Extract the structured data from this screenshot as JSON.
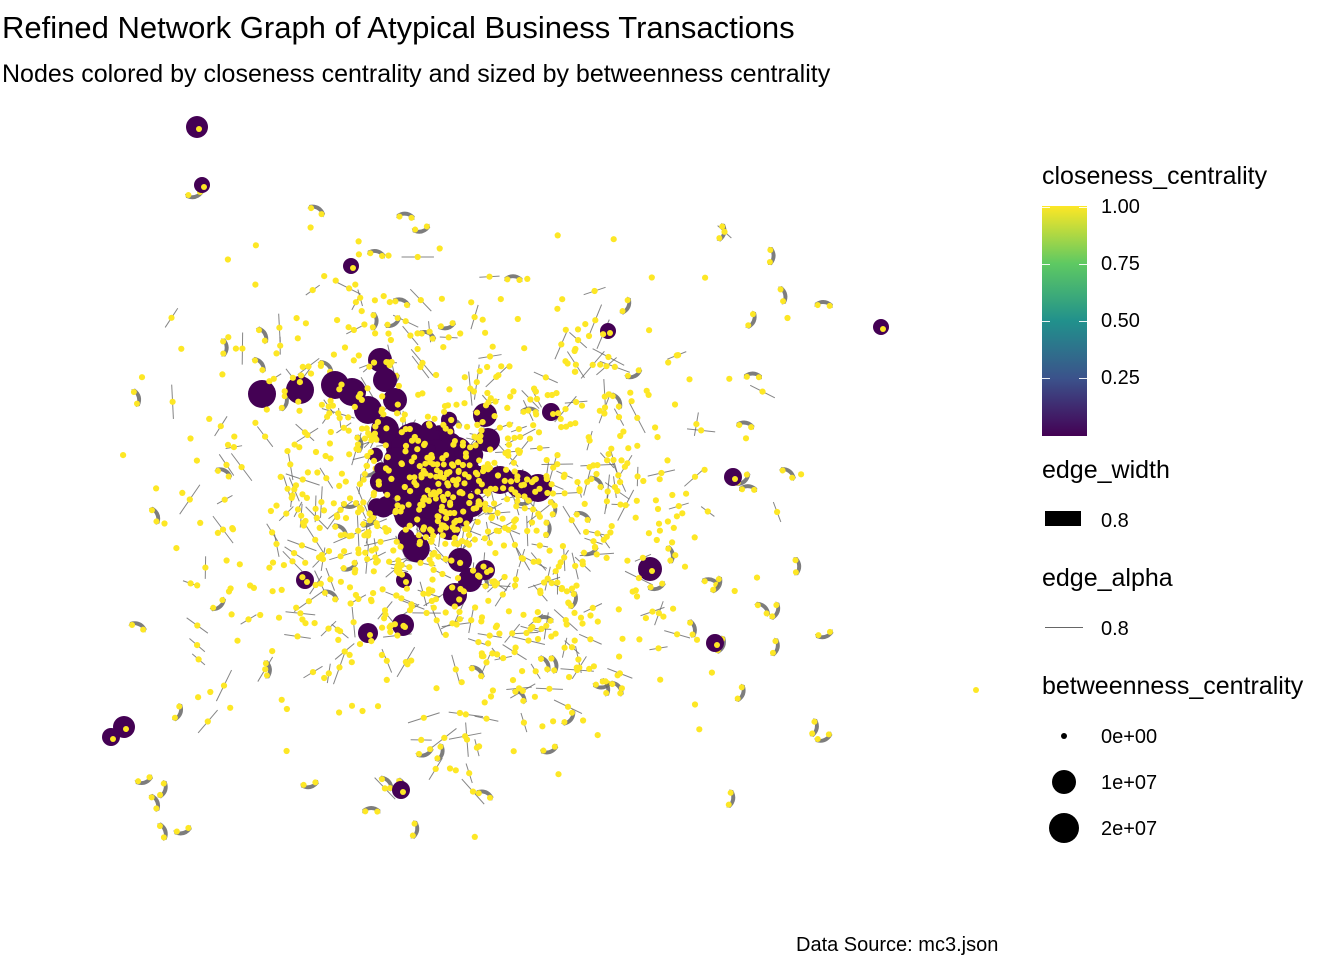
{
  "title": "Refined Network Graph of Atypical Business Transactions",
  "subtitle": "Nodes colored by closeness centrality and sized by betweenness centrality",
  "caption": "Data Source: mc3.json",
  "legend": {
    "closeness": {
      "title": "closeness_centrality",
      "ticks": [
        "1.00",
        "0.75",
        "0.50",
        "0.25"
      ],
      "colors": [
        "#440154",
        "#3b528b",
        "#21918c",
        "#5ec962",
        "#fde725"
      ]
    },
    "edge_width": {
      "title": "edge_width",
      "label": "0.8"
    },
    "edge_alpha": {
      "title": "edge_alpha",
      "label": "0.8"
    },
    "betweenness": {
      "title": "betweenness_centrality",
      "labels": [
        "0e+00",
        "1e+07",
        "2e+07"
      ]
    }
  },
  "chart_data": {
    "type": "scatter",
    "layout": "force-directed network graph",
    "grid": false,
    "axes": "none",
    "legend_position": "right",
    "node_colors": {
      "low_closeness": "#440154",
      "high_closeness": "#fde725",
      "edge": "#666666"
    },
    "node_groups": [
      {
        "group": "central cluster",
        "closeness": "low (dark purple)",
        "betweenness": "high"
      },
      {
        "group": "small isolated components",
        "closeness": "1.00 (yellow)",
        "betweenness": "0e+00"
      },
      {
        "group": "isolated pairs with visible edges",
        "closeness": "1.00 (yellow)",
        "betweenness": "0e+00"
      }
    ]
  }
}
